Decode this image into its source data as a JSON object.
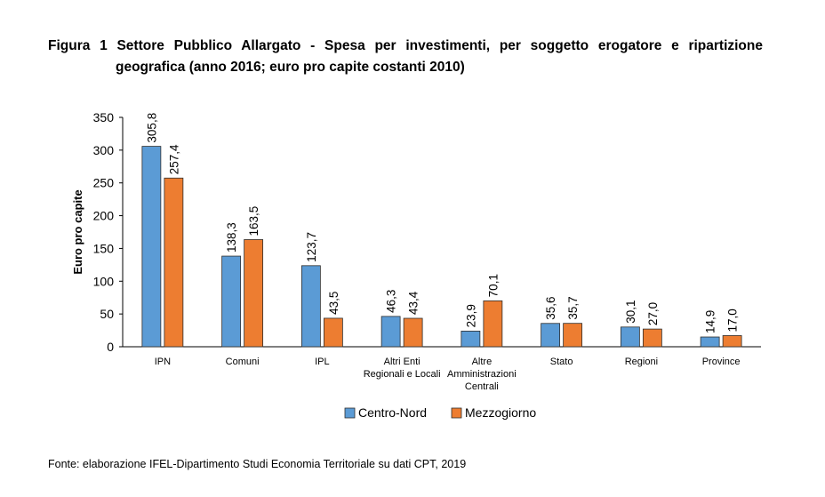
{
  "figure": {
    "title_line1": "Figura 1 Settore Pubblico Allargato - Spesa per investimenti, per soggetto erogatore e ripartizione",
    "title_line2": "geografica (anno 2016; euro pro capite costanti 2010)",
    "source": "Fonte: elaborazione IFEL-Dipartimento Studi Economia Territoriale su dati CPT, 2019"
  },
  "chart_data": {
    "type": "bar",
    "ylabel": "Euro pro capite",
    "xlabel": "",
    "ylim": [
      0,
      350
    ],
    "yticks": [
      0,
      50,
      100,
      150,
      200,
      250,
      300,
      350
    ],
    "grid": false,
    "legend_position": "bottom",
    "categories": [
      [
        "IPN"
      ],
      [
        "Comuni"
      ],
      [
        "IPL"
      ],
      [
        "Altri Enti",
        "Regionali e Locali"
      ],
      [
        "Altre",
        "Amministrazioni",
        "Centrali"
      ],
      [
        "Stato"
      ],
      [
        "Regioni"
      ],
      [
        "Province"
      ]
    ],
    "series": [
      {
        "name": "Centro-Nord",
        "color": "#5B9BD5",
        "values": [
          305.8,
          138.3,
          123.7,
          46.3,
          23.9,
          35.6,
          30.1,
          14.9
        ],
        "labels": [
          "305,8",
          "138,3",
          "123,7",
          "46,3",
          "23,9",
          "35,6",
          "30,1",
          "14,9"
        ]
      },
      {
        "name": "Mezzogiorno",
        "color": "#ED7D31",
        "values": [
          257.4,
          163.5,
          43.5,
          43.4,
          70.1,
          35.7,
          27.0,
          17.0
        ],
        "labels": [
          "257,4",
          "163,5",
          "43,5",
          "43,4",
          "70,1",
          "35,7",
          "27,0",
          "17,0"
        ]
      }
    ]
  }
}
